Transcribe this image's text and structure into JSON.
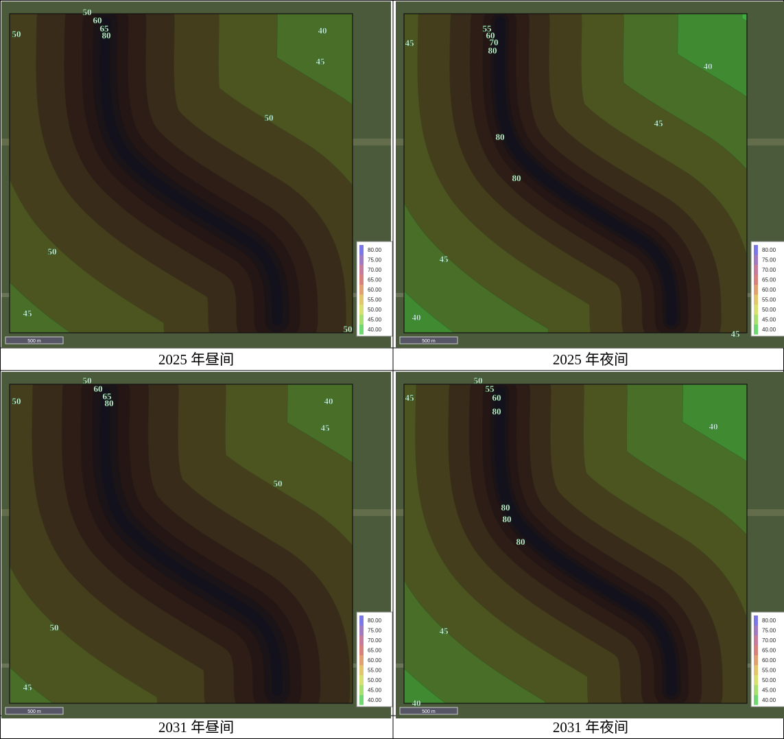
{
  "panels": [
    {
      "caption": "2025 年昼间",
      "contour_labels": [
        "50",
        "60",
        "65",
        "80",
        "50",
        "40",
        "45",
        "50",
        "50",
        "45",
        "50"
      ]
    },
    {
      "caption": "2025 年夜间",
      "contour_labels": [
        "55",
        "60",
        "70",
        "80",
        "45",
        "40",
        "45",
        "80",
        "80",
        "45",
        "40",
        "45"
      ]
    },
    {
      "caption": "2031 年昼间",
      "contour_labels": [
        "50",
        "60",
        "65",
        "80",
        "50",
        "40",
        "45",
        "50",
        "50",
        "45"
      ]
    },
    {
      "caption": "2031 年夜间",
      "contour_labels": [
        "50",
        "55",
        "60",
        "80",
        "45",
        "40",
        "80",
        "80",
        "80",
        "45",
        "40"
      ]
    }
  ],
  "legend": [
    "80.00",
    "75.00",
    "70.00",
    "65.00",
    "60.00",
    "55.00",
    "50.00",
    "45.00",
    "40.00"
  ],
  "scale_bar": "500 m"
}
